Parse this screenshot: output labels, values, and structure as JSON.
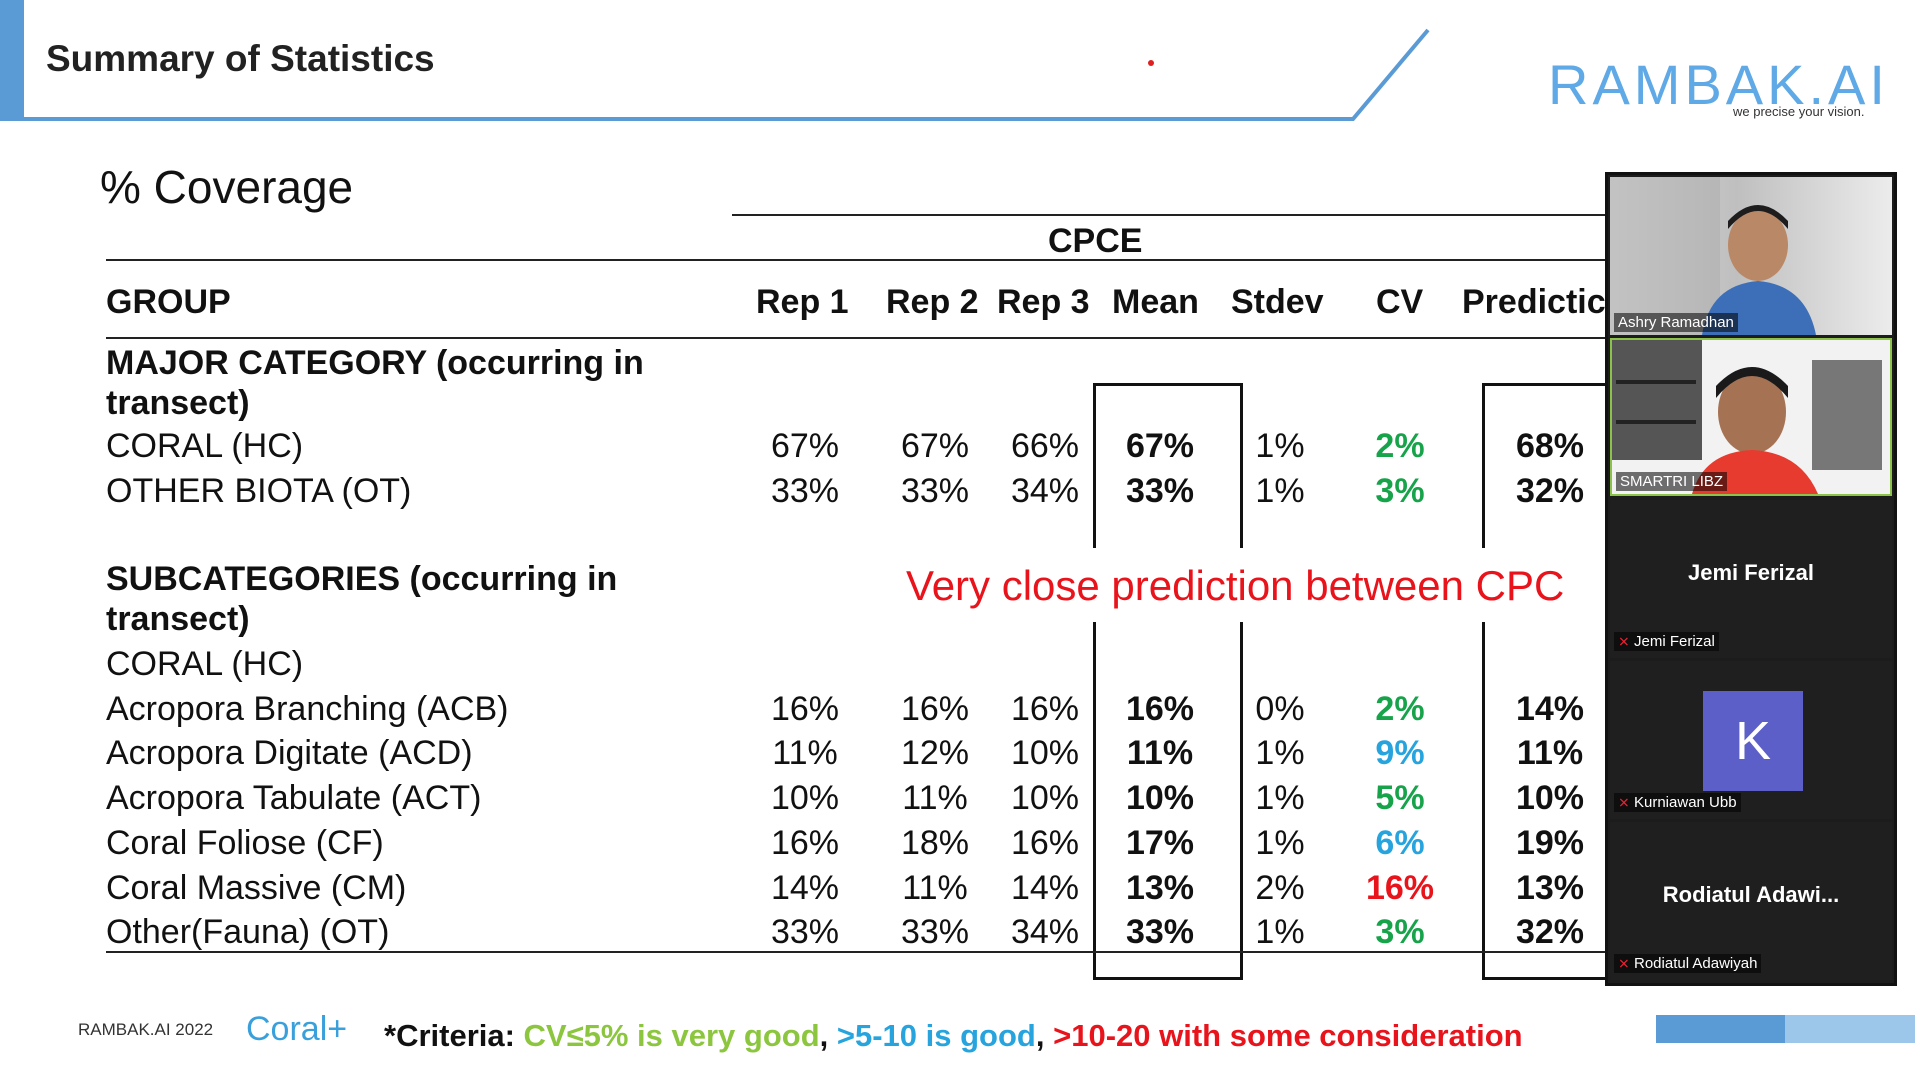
{
  "header": {
    "title": "Summary of Statistics",
    "logo": "RAMBAK.AI",
    "tagline": "we precise your vision."
  },
  "slide": {
    "heading": "% Coverage",
    "group_header": "CPCE",
    "columns": [
      "GROUP",
      "Rep 1",
      "Rep 2",
      "Rep 3",
      "Mean",
      "Stdev",
      "CV",
      "Predictic"
    ],
    "major_title": "MAJOR CATEGORY (occurring in transect)",
    "major_rows": [
      {
        "label": "CORAL (HC)",
        "rep1": "67%",
        "rep2": "67%",
        "rep3": "66%",
        "mean": "67%",
        "stdev": "1%",
        "cv": "2%",
        "pred": "68%"
      },
      {
        "label": "OTHER BIOTA (OT)",
        "rep1": "33%",
        "rep2": "33%",
        "rep3": "34%",
        "mean": "33%",
        "stdev": "1%",
        "cv": "3%",
        "pred": "32%"
      }
    ],
    "sub_title": "SUBCATEGORIES (occurring in transect)",
    "sub_group": "CORAL (HC)",
    "sub_rows": [
      {
        "label": "Acropora Branching (ACB)",
        "rep1": "16%",
        "rep2": "16%",
        "rep3": "16%",
        "mean": "16%",
        "stdev": "0%",
        "cv": "2%",
        "pred": "14%"
      },
      {
        "label": "Acropora Digitate (ACD)",
        "rep1": "11%",
        "rep2": "12%",
        "rep3": "10%",
        "mean": "11%",
        "stdev": "1%",
        "cv": "9%",
        "pred": "11%"
      },
      {
        "label": "Acropora Tabulate (ACT)",
        "rep1": "10%",
        "rep2": "11%",
        "rep3": "10%",
        "mean": "10%",
        "stdev": "1%",
        "cv": "5%",
        "pred": "10%"
      },
      {
        "label": "Coral Foliose (CF)",
        "rep1": "16%",
        "rep2": "18%",
        "rep3": "16%",
        "mean": "17%",
        "stdev": "1%",
        "cv": "6%",
        "pred": "19%"
      },
      {
        "label": "Coral Massive (CM)",
        "rep1": "14%",
        "rep2": "11%",
        "rep3": "14%",
        "mean": "13%",
        "stdev": "2%",
        "cv": "16%",
        "pred": "13%"
      },
      {
        "label": "Other(Fauna) (OT)",
        "rep1": "33%",
        "rep2": "33%",
        "rep3": "34%",
        "mean": "33%",
        "stdev": "1%",
        "cv": "3%",
        "pred": "32%"
      }
    ],
    "annotation": "Very close prediction between CPC"
  },
  "cv_colors": {
    "major": [
      "#16a34a",
      "#16a34a"
    ],
    "sub": [
      "#16a34a",
      "#27a4dd",
      "#16a34a",
      "#27a4dd",
      "#e8131b",
      "#16a34a"
    ]
  },
  "footer": {
    "left": "RAMBAK.AI 2022",
    "brand": "Coral+",
    "criteria_prefix": "*Criteria: ",
    "criteria_1": "CV≤5% is very good",
    "sep": ", ",
    "criteria_2": ">5-10 is good",
    "criteria_3": ">10-20 with some consideration"
  },
  "participants": [
    {
      "name": "Ashry Ramadhan",
      "video": true
    },
    {
      "name": "SMARTRI LIBZ",
      "video": true
    },
    {
      "name": "Jemi Ferizal",
      "display": "Jemi Ferizal",
      "video": false
    },
    {
      "name": "Kurniawan Ubb",
      "avatar_letter": "K",
      "video": false
    },
    {
      "name": "Rodiatul Adawiyah",
      "display": "Rodiatul  Adawi...",
      "video": false
    }
  ]
}
